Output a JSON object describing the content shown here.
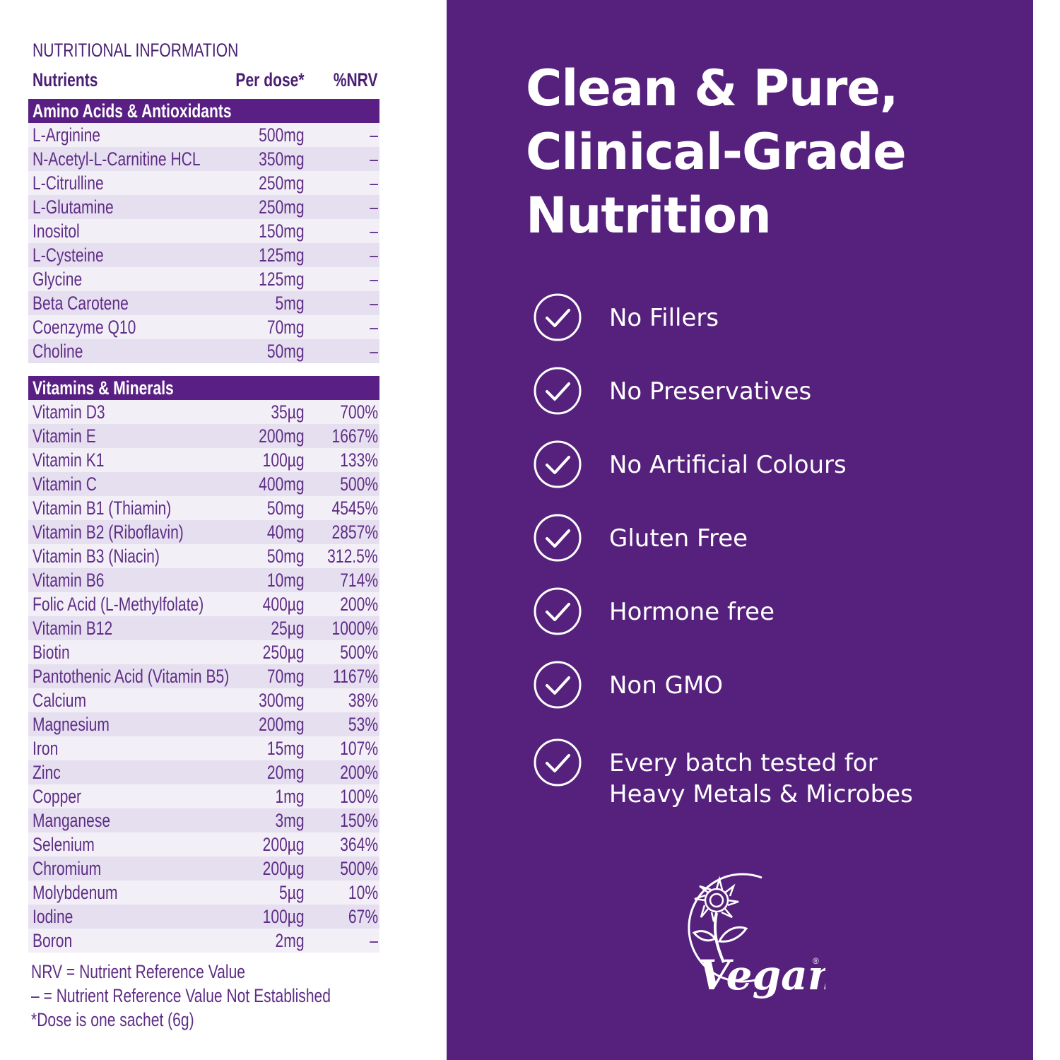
{
  "table": {
    "title": "NUTRITIONAL INFORMATION",
    "headers": {
      "nutrients": "Nutrients",
      "per_dose": "Per dose*",
      "nrv": "%NRV"
    },
    "sections": [
      {
        "title": "Amino Acids & Antioxidants",
        "rows": [
          {
            "name": "L-Arginine",
            "dose": "500mg",
            "nrv": "–"
          },
          {
            "name": "N-Acetyl-L-Carnitine HCL",
            "dose": "350mg",
            "nrv": "–"
          },
          {
            "name": "L-Citrulline",
            "dose": "250mg",
            "nrv": "–"
          },
          {
            "name": "L-Glutamine",
            "dose": "250mg",
            "nrv": "–"
          },
          {
            "name": "Inositol",
            "dose": "150mg",
            "nrv": "–"
          },
          {
            "name": "L-Cysteine",
            "dose": "125mg",
            "nrv": "–"
          },
          {
            "name": "Glycine",
            "dose": "125mg",
            "nrv": "–"
          },
          {
            "name": "Beta Carotene",
            "dose": "5mg",
            "nrv": "–"
          },
          {
            "name": "Coenzyme Q10",
            "dose": "70mg",
            "nrv": "–"
          },
          {
            "name": "Choline",
            "dose": "50mg",
            "nrv": "–"
          }
        ]
      },
      {
        "title": "Vitamins & Minerals",
        "rows": [
          {
            "name": "Vitamin D3",
            "dose": "35µg",
            "nrv": "700%"
          },
          {
            "name": "Vitamin E",
            "dose": "200mg",
            "nrv": "1667%"
          },
          {
            "name": "Vitamin K1",
            "dose": "100µg",
            "nrv": "133%"
          },
          {
            "name": "Vitamin C",
            "dose": "400mg",
            "nrv": "500%"
          },
          {
            "name": "Vitamin B1 (Thiamin)",
            "dose": "50mg",
            "nrv": "4545%"
          },
          {
            "name": "Vitamin B2 (Riboflavin)",
            "dose": "40mg",
            "nrv": "2857%"
          },
          {
            "name": "Vitamin B3 (Niacin)",
            "dose": "50mg",
            "nrv": "312.5%"
          },
          {
            "name": "Vitamin B6",
            "dose": "10mg",
            "nrv": "714%"
          },
          {
            "name": "Folic Acid (L-Methylfolate)",
            "dose": "400µg",
            "nrv": "200%"
          },
          {
            "name": "Vitamin B12",
            "dose": "25µg",
            "nrv": "1000%"
          },
          {
            "name": "Biotin",
            "dose": "250µg",
            "nrv": "500%"
          },
          {
            "name": "Pantothenic Acid (Vitamin B5)",
            "dose": "70mg",
            "nrv": "1167%"
          },
          {
            "name": "Calcium",
            "dose": "300mg",
            "nrv": "38%"
          },
          {
            "name": "Magnesium",
            "dose": "200mg",
            "nrv": "53%"
          },
          {
            "name": "Iron",
            "dose": "15mg",
            "nrv": "107%"
          },
          {
            "name": "Zinc",
            "dose": "20mg",
            "nrv": "200%"
          },
          {
            "name": "Copper",
            "dose": "1mg",
            "nrv": "100%"
          },
          {
            "name": "Manganese",
            "dose": "3mg",
            "nrv": "150%"
          },
          {
            "name": "Selenium",
            "dose": "200µg",
            "nrv": "364%"
          },
          {
            "name": "Chromium",
            "dose": "200µg",
            "nrv": "500%"
          },
          {
            "name": "Molybdenum",
            "dose": "5µg",
            "nrv": "10%"
          },
          {
            "name": "Iodine",
            "dose": "100µg",
            "nrv": "67%"
          },
          {
            "name": "Boron",
            "dose": "2mg",
            "nrv": "–"
          }
        ]
      }
    ],
    "notes": [
      "NRV = Nutrient Reference Value",
      "– = Nutrient Reference Value Not Established",
      "*Dose is one sachet (6g)"
    ]
  },
  "panel": {
    "headline": [
      "Clean & Pure,",
      "Clinical-Grade",
      "Nutrition"
    ],
    "features": [
      {
        "icon": "check-circle-icon",
        "lines": [
          "No Fillers"
        ]
      },
      {
        "icon": "check-circle-icon",
        "lines": [
          "No Preservatives"
        ]
      },
      {
        "icon": "check-circle-icon",
        "lines": [
          "No Artificial Colours"
        ]
      },
      {
        "icon": "check-circle-icon",
        "lines": [
          "Gluten Free"
        ]
      },
      {
        "icon": "check-circle-icon",
        "lines": [
          "Hormone free"
        ]
      },
      {
        "icon": "check-circle-icon",
        "lines": [
          "Non GMO"
        ]
      },
      {
        "icon": "check-circle-icon",
        "lines": [
          "Every batch tested for",
          "Heavy Metals & Microbes"
        ]
      }
    ],
    "vegan_logo_text": "Vegan"
  },
  "colors": {
    "panel_bg": "#55217c",
    "section_header_bg": "#5a1f84",
    "row_light": "#f3eff7",
    "row_dark": "#e6dff0",
    "table_text": "#5e2d86"
  }
}
